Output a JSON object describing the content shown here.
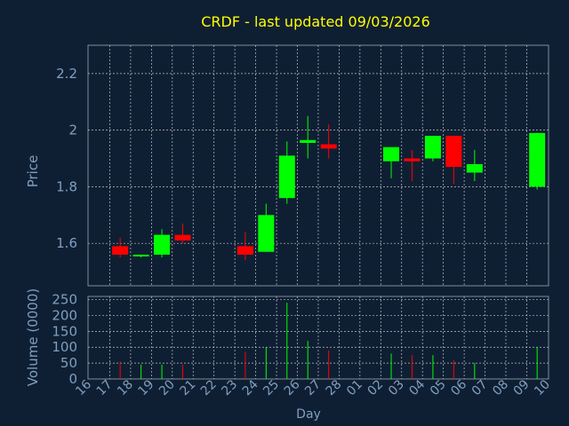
{
  "chart_data": {
    "type": "candlestick",
    "title": "CRDF - last updated 09/03/2026",
    "ylabel_price": "Price",
    "ylabel_volume": "Volume (0000)",
    "xlabel": "Day",
    "price_ylim": [
      1.45,
      2.3
    ],
    "price_yticks": [
      1.6,
      1.8,
      2,
      2.2
    ],
    "price_ytick_labels": [
      "1.6",
      "1.8",
      "2",
      "2.2"
    ],
    "volume_ylim": [
      0,
      260
    ],
    "volume_yticks": [
      0,
      50,
      100,
      150,
      200,
      250
    ],
    "volume_ytick_labels": [
      "0",
      "50",
      "100",
      "150",
      "200",
      "250"
    ],
    "x_tick_labels": [
      "16",
      "17",
      "18",
      "19",
      "20",
      "21",
      "22",
      "23",
      "24",
      "25",
      "26",
      "27",
      "28",
      "01",
      "02",
      "03",
      "04",
      "05",
      "06",
      "07",
      "08",
      "09",
      "10"
    ],
    "grid": true,
    "up_color": "#00ff00",
    "down_color": "#ff0000",
    "candles": [
      {
        "day": "17",
        "open": 1.59,
        "high": 1.62,
        "low": 1.55,
        "close": 1.56,
        "volume": 55
      },
      {
        "day": "18",
        "open": 1.555,
        "high": 1.56,
        "low": 1.55,
        "close": 1.56,
        "volume": 45
      },
      {
        "day": "19",
        "open": 1.56,
        "high": 1.65,
        "low": 1.55,
        "close": 1.63,
        "volume": 45
      },
      {
        "day": "20",
        "open": 1.63,
        "high": 1.67,
        "low": 1.6,
        "close": 1.61,
        "volume": 45
      },
      {
        "day": "23",
        "open": 1.59,
        "high": 1.64,
        "low": 1.54,
        "close": 1.56,
        "volume": 85
      },
      {
        "day": "24",
        "open": 1.57,
        "high": 1.74,
        "low": 1.57,
        "close": 1.7,
        "volume": 100
      },
      {
        "day": "25",
        "open": 1.76,
        "high": 1.96,
        "low": 1.74,
        "close": 1.91,
        "volume": 240
      },
      {
        "day": "26",
        "open": 1.955,
        "high": 2.05,
        "low": 1.9,
        "close": 1.965,
        "volume": 120
      },
      {
        "day": "27",
        "open": 1.95,
        "high": 2.02,
        "low": 1.9,
        "close": 1.935,
        "volume": 90
      },
      {
        "day": "02",
        "open": 1.89,
        "high": 1.94,
        "low": 1.83,
        "close": 1.94,
        "volume": 80
      },
      {
        "day": "03",
        "open": 1.9,
        "high": 1.93,
        "low": 1.82,
        "close": 1.89,
        "volume": 75
      },
      {
        "day": "04",
        "open": 1.9,
        "high": 1.98,
        "low": 1.89,
        "close": 1.98,
        "volume": 75
      },
      {
        "day": "05",
        "open": 1.98,
        "high": 1.98,
        "low": 1.81,
        "close": 1.87,
        "volume": 60
      },
      {
        "day": "06",
        "open": 1.85,
        "high": 1.93,
        "low": 1.82,
        "close": 1.88,
        "volume": 50
      },
      {
        "day": "09",
        "open": 1.8,
        "high": 1.99,
        "low": 1.79,
        "close": 1.99,
        "volume": 100
      }
    ]
  },
  "colors": {
    "background": "#0f1f33",
    "title": "#ffff00",
    "axis_text": "#7f9fbf",
    "frame": "#7f8c99",
    "grid": "#c0c0c0"
  }
}
